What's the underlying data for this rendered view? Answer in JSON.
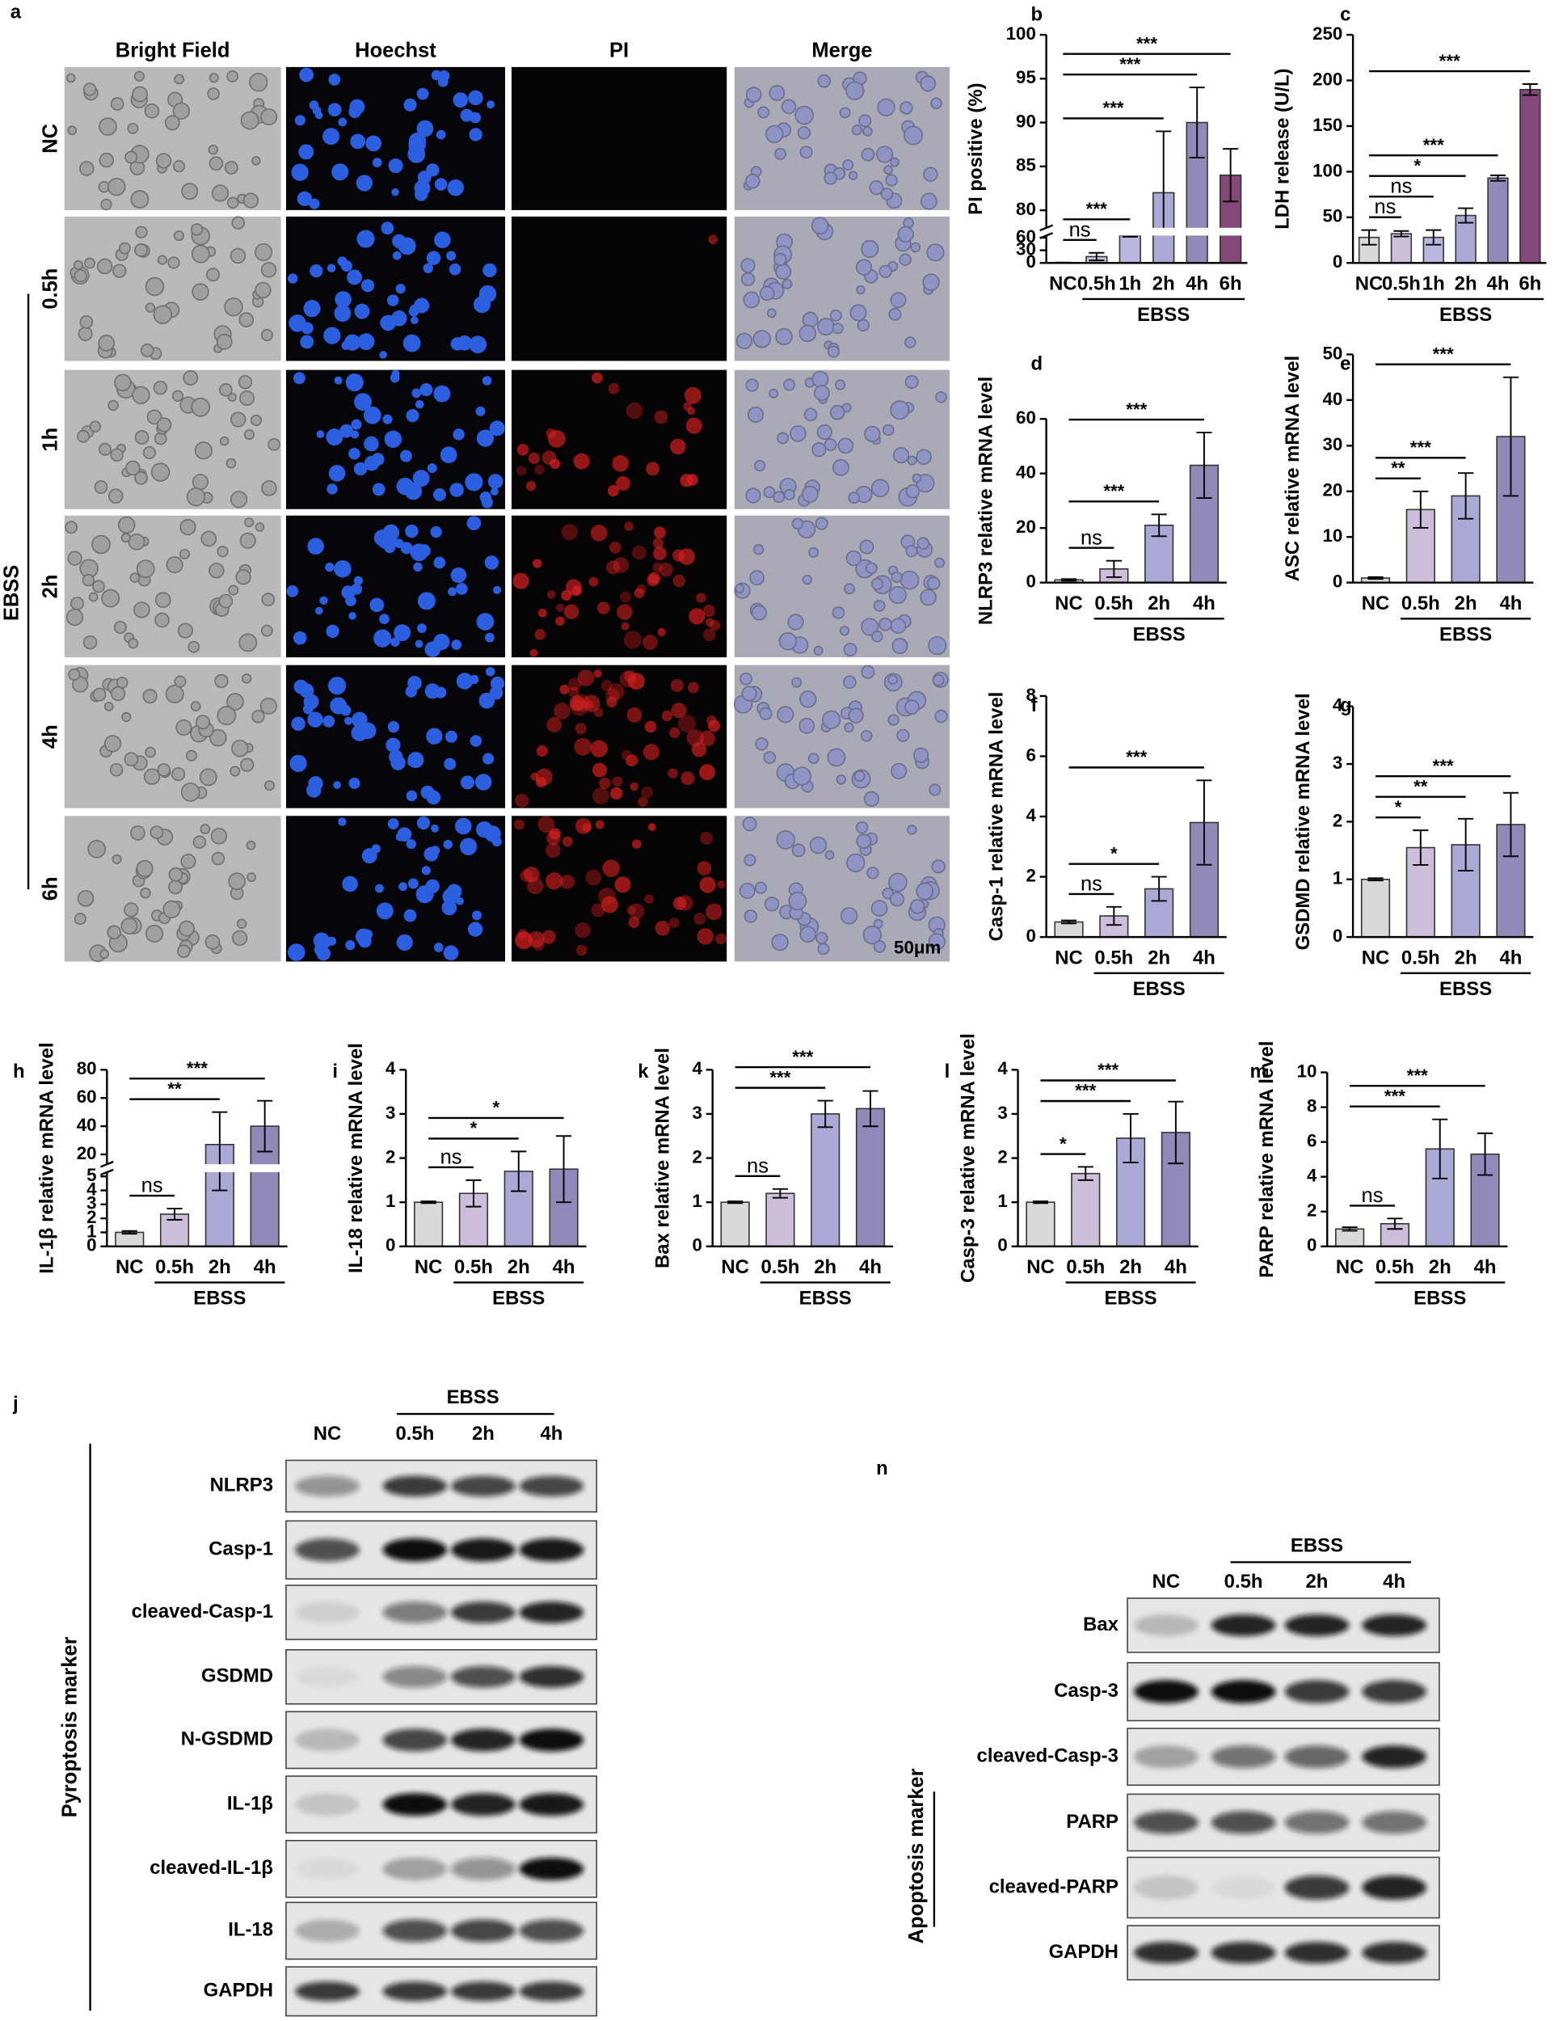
{
  "panel_a": {
    "letter": "a",
    "columns": [
      "Bright Field",
      "Hoechst",
      "PI",
      "Merge"
    ],
    "rows": [
      "NC",
      "0.5h",
      "1h",
      "2h",
      "4h",
      "6h"
    ],
    "group_label": "EBSS",
    "scale_bar": "50μm"
  },
  "chart_data": [
    {
      "type": "bar",
      "letter": "b",
      "ylabel": "PI positive (%)",
      "categories": [
        "NC",
        "0.5h",
        "1h",
        "2h",
        "4h",
        "6h"
      ],
      "values": [
        0.5,
        15,
        65,
        82,
        90,
        84
      ],
      "errors": [
        0.5,
        9,
        3,
        7,
        4,
        3
      ],
      "colors": [
        "#d9d9d9",
        "#cdbfdc",
        "#b9b7e0",
        "#aba9d6",
        "#8f8ab8",
        "#84487a"
      ],
      "ylim": [
        0,
        100
      ],
      "yticks": [
        0,
        30,
        60,
        80,
        85,
        90,
        95,
        100
      ],
      "ybreak": [
        65,
        78
      ],
      "comparisons": [
        {
          "pair": [
            "NC",
            "0.5h"
          ],
          "label": "ns"
        },
        {
          "pair": [
            "NC",
            "1h"
          ],
          "label": "***"
        },
        {
          "pair": [
            "NC",
            "2h"
          ],
          "label": "***"
        },
        {
          "pair": [
            "NC",
            "4h"
          ],
          "label": "***"
        },
        {
          "pair": [
            "NC",
            "6h"
          ],
          "label": "***"
        }
      ],
      "group_label": "EBSS"
    },
    {
      "type": "bar",
      "letter": "c",
      "ylabel": "LDH release (U/L)",
      "categories": [
        "NC",
        "0.5h",
        "1h",
        "2h",
        "4h",
        "6h"
      ],
      "values": [
        28,
        32,
        28,
        52,
        93,
        190
      ],
      "errors": [
        8,
        3,
        8,
        8,
        3,
        6
      ],
      "colors": [
        "#d9d9d9",
        "#cdbfdc",
        "#b9b7e0",
        "#aba9d6",
        "#8f8ab8",
        "#84487a"
      ],
      "ylim": [
        0,
        250
      ],
      "yticks": [
        0,
        50,
        100,
        150,
        200,
        250
      ],
      "comparisons": [
        {
          "pair": [
            "NC",
            "0.5h"
          ],
          "label": "ns"
        },
        {
          "pair": [
            "NC",
            "1h"
          ],
          "label": "ns"
        },
        {
          "pair": [
            "NC",
            "2h"
          ],
          "label": "*"
        },
        {
          "pair": [
            "NC",
            "4h"
          ],
          "label": "***"
        },
        {
          "pair": [
            "NC",
            "6h"
          ],
          "label": "***"
        }
      ],
      "group_label": "EBSS"
    },
    {
      "type": "bar",
      "letter": "d",
      "ylabel": "NLRP3 relative mRNA level",
      "categories": [
        "NC",
        "0.5h",
        "2h",
        "4h"
      ],
      "values": [
        1,
        5,
        21,
        43
      ],
      "errors": [
        0.3,
        3,
        4,
        12
      ],
      "colors": [
        "#d9d9d9",
        "#cdbfdc",
        "#aba9d6",
        "#8f8ab8"
      ],
      "ylim": [
        0,
        60
      ],
      "yticks": [
        0,
        20,
        40,
        60
      ],
      "comparisons": [
        {
          "pair": [
            "NC",
            "0.5h"
          ],
          "label": "ns"
        },
        {
          "pair": [
            "NC",
            "2h"
          ],
          "label": "***"
        },
        {
          "pair": [
            "NC",
            "4h"
          ],
          "label": "***"
        }
      ],
      "group_label": "EBSS"
    },
    {
      "type": "bar",
      "letter": "e",
      "ylabel": "ASC relative mRNA level",
      "categories": [
        "NC",
        "0.5h",
        "2h",
        "4h"
      ],
      "values": [
        1,
        16,
        19,
        32
      ],
      "errors": [
        0.2,
        4,
        5,
        13
      ],
      "colors": [
        "#d9d9d9",
        "#cdbfdc",
        "#aba9d6",
        "#8f8ab8"
      ],
      "ylim": [
        0,
        50
      ],
      "yticks": [
        0,
        10,
        20,
        30,
        40,
        50
      ],
      "comparisons": [
        {
          "pair": [
            "NC",
            "0.5h"
          ],
          "label": "**"
        },
        {
          "pair": [
            "NC",
            "2h"
          ],
          "label": "***"
        },
        {
          "pair": [
            "NC",
            "4h"
          ],
          "label": "***"
        }
      ],
      "group_label": "EBSS"
    },
    {
      "type": "bar",
      "letter": "f",
      "ylabel": "Casp-1 relative mRNA level",
      "categories": [
        "NC",
        "0.5h",
        "2h",
        "4h"
      ],
      "values": [
        0.5,
        0.7,
        1.6,
        3.8
      ],
      "errors": [
        0.05,
        0.3,
        0.4,
        1.4
      ],
      "colors": [
        "#d9d9d9",
        "#cdbfdc",
        "#aba9d6",
        "#8f8ab8"
      ],
      "ylim": [
        0,
        8
      ],
      "yticks": [
        0,
        2,
        4,
        6,
        8
      ],
      "comparisons": [
        {
          "pair": [
            "NC",
            "0.5h"
          ],
          "label": "ns"
        },
        {
          "pair": [
            "NC",
            "2h"
          ],
          "label": "*"
        },
        {
          "pair": [
            "NC",
            "4h"
          ],
          "label": "***"
        }
      ],
      "group_label": "EBSS"
    },
    {
      "type": "bar",
      "letter": "g",
      "ylabel": "GSDMD relative mRNA level",
      "categories": [
        "NC",
        "0.5h",
        "2h",
        "4h"
      ],
      "values": [
        1,
        1.55,
        1.6,
        1.95
      ],
      "errors": [
        0.02,
        0.3,
        0.45,
        0.55
      ],
      "colors": [
        "#d9d9d9",
        "#cdbfdc",
        "#aba9d6",
        "#8f8ab8"
      ],
      "ylim": [
        0,
        4
      ],
      "yticks": [
        0,
        1,
        2,
        3,
        4
      ],
      "comparisons": [
        {
          "pair": [
            "NC",
            "0.5h"
          ],
          "label": "*"
        },
        {
          "pair": [
            "NC",
            "2h"
          ],
          "label": "**"
        },
        {
          "pair": [
            "NC",
            "4h"
          ],
          "label": "***"
        }
      ],
      "group_label": "EBSS"
    },
    {
      "type": "bar",
      "letter": "h",
      "ylabel": "IL-1β relative mRNA level",
      "categories": [
        "NC",
        "0.5h",
        "2h",
        "4h"
      ],
      "values": [
        1,
        2.3,
        27,
        40
      ],
      "errors": [
        0.1,
        0.4,
        23,
        18
      ],
      "colors": [
        "#d9d9d9",
        "#cdbfdc",
        "#aba9d6",
        "#8f8ab8"
      ],
      "ylim": [
        0,
        80
      ],
      "yticks": [
        0,
        1,
        2,
        3,
        4,
        5,
        20,
        40,
        60,
        80
      ],
      "ybreak": [
        5.3,
        13
      ],
      "comparisons": [
        {
          "pair": [
            "NC",
            "0.5h"
          ],
          "label": "ns"
        },
        {
          "pair": [
            "NC",
            "2h"
          ],
          "label": "**"
        },
        {
          "pair": [
            "NC",
            "4h"
          ],
          "label": "***"
        }
      ],
      "group_label": "EBSS"
    },
    {
      "type": "bar",
      "letter": "i",
      "ylabel": "IL-18 relative mRNA level",
      "categories": [
        "NC",
        "0.5h",
        "2h",
        "4h"
      ],
      "values": [
        1,
        1.2,
        1.7,
        1.75
      ],
      "errors": [
        0.02,
        0.3,
        0.45,
        0.75
      ],
      "colors": [
        "#d9d9d9",
        "#cdbfdc",
        "#aba9d6",
        "#8f8ab8"
      ],
      "ylim": [
        0,
        4
      ],
      "yticks": [
        0,
        1,
        2,
        3,
        4
      ],
      "comparisons": [
        {
          "pair": [
            "NC",
            "0.5h"
          ],
          "label": "ns"
        },
        {
          "pair": [
            "NC",
            "2h"
          ],
          "label": "*"
        },
        {
          "pair": [
            "NC",
            "4h"
          ],
          "label": "*"
        }
      ],
      "group_label": "EBSS"
    },
    {
      "type": "bar",
      "letter": "k",
      "ylabel": "Bax relative mRNA level",
      "categories": [
        "NC",
        "0.5h",
        "2h",
        "4h"
      ],
      "values": [
        1,
        1.2,
        3.0,
        3.12
      ],
      "errors": [
        0.02,
        0.1,
        0.3,
        0.4
      ],
      "colors": [
        "#d9d9d9",
        "#cdbfdc",
        "#aba9d6",
        "#8f8ab8"
      ],
      "ylim": [
        0,
        4
      ],
      "yticks": [
        0,
        1,
        2,
        3,
        4
      ],
      "comparisons": [
        {
          "pair": [
            "NC",
            "0.5h"
          ],
          "label": "ns"
        },
        {
          "pair": [
            "NC",
            "2h"
          ],
          "label": "***"
        },
        {
          "pair": [
            "NC",
            "4h"
          ],
          "label": "***"
        }
      ],
      "group_label": "EBSS"
    },
    {
      "type": "bar",
      "letter": "l",
      "ylabel": "Casp-3 relative mRNA level",
      "categories": [
        "NC",
        "0.5h",
        "2h",
        "4h"
      ],
      "values": [
        1,
        1.65,
        2.45,
        2.58
      ],
      "errors": [
        0.02,
        0.15,
        0.55,
        0.7
      ],
      "colors": [
        "#d9d9d9",
        "#cdbfdc",
        "#aba9d6",
        "#8f8ab8"
      ],
      "ylim": [
        0,
        4
      ],
      "yticks": [
        0,
        1,
        2,
        3,
        4
      ],
      "comparisons": [
        {
          "pair": [
            "NC",
            "0.5h"
          ],
          "label": "*"
        },
        {
          "pair": [
            "NC",
            "2h"
          ],
          "label": "***"
        },
        {
          "pair": [
            "NC",
            "4h"
          ],
          "label": "***"
        }
      ],
      "group_label": "EBSS"
    },
    {
      "type": "bar",
      "letter": "m",
      "ylabel": "PARP relative mRNA level",
      "categories": [
        "NC",
        "0.5h",
        "2h",
        "4h"
      ],
      "values": [
        1,
        1.3,
        5.6,
        5.3
      ],
      "errors": [
        0.1,
        0.3,
        1.7,
        1.2
      ],
      "colors": [
        "#d9d9d9",
        "#cdbfdc",
        "#aba9d6",
        "#8f8ab8"
      ],
      "ylim": [
        0,
        10
      ],
      "yticks": [
        0,
        2,
        4,
        6,
        8,
        10
      ],
      "comparisons": [
        {
          "pair": [
            "NC",
            "0.5h"
          ],
          "label": "ns"
        },
        {
          "pair": [
            "NC",
            "2h"
          ],
          "label": "***"
        },
        {
          "pair": [
            "NC",
            "4h"
          ],
          "label": "***"
        }
      ],
      "group_label": "EBSS"
    }
  ],
  "panel_j": {
    "letter": "j",
    "lanes": [
      "NC",
      "0.5h",
      "2h",
      "4h"
    ],
    "group_label": "EBSS",
    "proteins": [
      "NLRP3",
      "Casp-1",
      "cleaved-Casp-1",
      "GSDMD",
      "N-GSDMD",
      "IL-1β",
      "cleaved-IL-1β",
      "IL-18",
      "GAPDH"
    ],
    "side_label": "Pyroptosis marker"
  },
  "panel_n": {
    "letter": "n",
    "lanes": [
      "NC",
      "0.5h",
      "2h",
      "4h"
    ],
    "group_label": "EBSS",
    "proteins": [
      "Bax",
      "Casp-3",
      "cleaved-Casp-3",
      "PARP",
      "cleaved-PARP",
      "GAPDH"
    ],
    "side_label": "Apoptosis marker"
  }
}
